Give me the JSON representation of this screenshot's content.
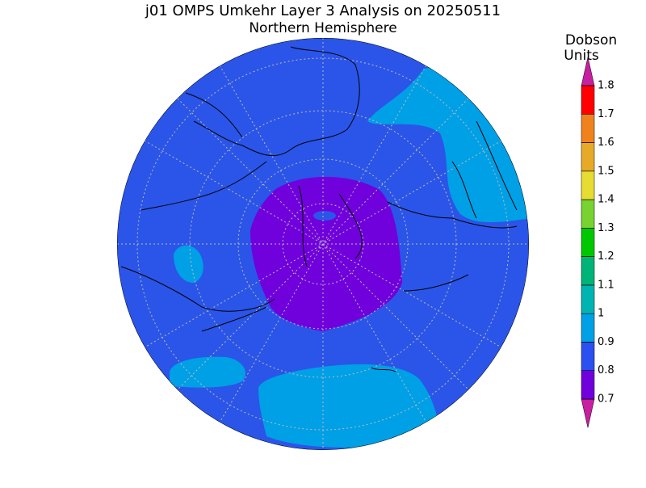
{
  "header": {
    "title": "j01 OMPS Umkehr Layer 3 Analysis on 20250511",
    "subtitle": "Northern Hemisphere"
  },
  "colorbar": {
    "units": [
      "Dobson",
      "Units"
    ],
    "ticks": [
      0.7,
      0.8,
      0.9,
      1,
      1.1,
      1.2,
      1.3,
      1.4,
      1.5,
      1.6,
      1.7,
      1.8
    ],
    "colors": [
      "#c81ea0",
      "#7000dc",
      "#2a50f0",
      "#00a0e6",
      "#00b4b4",
      "#00b478",
      "#00c800",
      "#78d232",
      "#e6dc32",
      "#e6aa28",
      "#f0821e",
      "#ff0000",
      "#c81ea0"
    ]
  }
}
